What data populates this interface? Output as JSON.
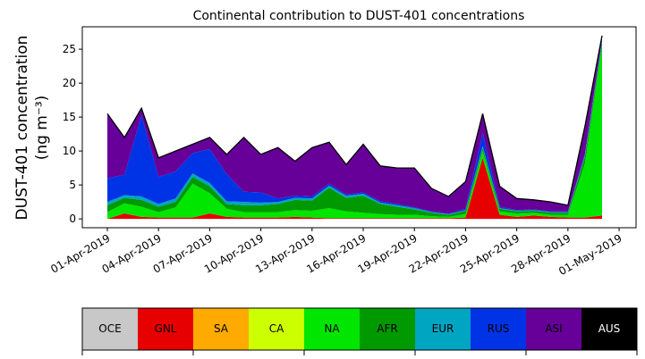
{
  "chart_data": {
    "type": "stacked_area",
    "title": "Continental contribution to DUST-401 concentrations",
    "y_label": [
      "DUST-401 concentration",
      "(ng m⁻³)"
    ],
    "x": [
      "2019-04-01",
      "2019-04-02",
      "2019-04-03",
      "2019-04-04",
      "2019-04-05",
      "2019-04-06",
      "2019-04-07",
      "2019-04-08",
      "2019-04-09",
      "2019-04-10",
      "2019-04-11",
      "2019-04-12",
      "2019-04-13",
      "2019-04-14",
      "2019-04-15",
      "2019-04-16",
      "2019-04-17",
      "2019-04-18",
      "2019-04-19",
      "2019-04-20",
      "2019-04-21",
      "2019-04-22",
      "2019-04-23",
      "2019-04-24",
      "2019-04-25",
      "2019-04-26",
      "2019-04-27",
      "2019-04-28",
      "2019-04-29",
      "2019-04-30"
    ],
    "xticks": [
      {
        "value": "2019-04-01",
        "label": "01-Apr-2019"
      },
      {
        "value": "2019-04-04",
        "label": "04-Apr-2019"
      },
      {
        "value": "2019-04-07",
        "label": "07-Apr-2019"
      },
      {
        "value": "2019-04-10",
        "label": "10-Apr-2019"
      },
      {
        "value": "2019-04-13",
        "label": "13-Apr-2019"
      },
      {
        "value": "2019-04-16",
        "label": "16-Apr-2019"
      },
      {
        "value": "2019-04-19",
        "label": "19-Apr-2019"
      },
      {
        "value": "2019-04-22",
        "label": "22-Apr-2019"
      },
      {
        "value": "2019-04-25",
        "label": "25-Apr-2019"
      },
      {
        "value": "2019-04-28",
        "label": "28-Apr-2019"
      },
      {
        "value": "2019-05-01",
        "label": "01-May-2019"
      }
    ],
    "ylim": [
      -1.3,
      28.3
    ],
    "yticks": [
      0,
      5,
      10,
      15,
      20,
      25
    ],
    "series": [
      {
        "name": "OCE",
        "color": "#c8c8c8",
        "values": [
          0,
          0,
          0,
          0,
          0,
          0,
          0,
          0,
          0,
          0,
          0,
          0,
          0,
          0,
          0,
          0,
          0,
          0,
          0,
          0,
          0,
          0,
          0,
          0,
          0,
          0,
          0,
          0,
          0,
          0
        ]
      },
      {
        "name": "GNL",
        "color": "#e60000",
        "values": [
          0,
          0.8,
          0.3,
          0.2,
          0.2,
          0.2,
          0.8,
          0.3,
          0.2,
          0.2,
          0.2,
          0.3,
          0.2,
          0.1,
          0.1,
          0.1,
          0.1,
          0.1,
          0.1,
          0.1,
          0.1,
          0.2,
          9,
          0.6,
          0.3,
          0.5,
          0.3,
          0.2,
          0.2,
          0.5
        ]
      },
      {
        "name": "SA",
        "color": "#ffaa00",
        "values": [
          0,
          0,
          0,
          0,
          0,
          0,
          0,
          0,
          0,
          0,
          0,
          0,
          0,
          0,
          0,
          0,
          0,
          0,
          0,
          0,
          0,
          0,
          0,
          0,
          0,
          0,
          0,
          0,
          0,
          0
        ]
      },
      {
        "name": "CA",
        "color": "#ccff00",
        "values": [
          0,
          0,
          0,
          0,
          0,
          0,
          0,
          0,
          0,
          0,
          0,
          0,
          0,
          0,
          0,
          0,
          0,
          0,
          0,
          0,
          0,
          0,
          0,
          0,
          0,
          0,
          0,
          0,
          0,
          0
        ]
      },
      {
        "name": "NA",
        "color": "#00e600",
        "values": [
          1,
          1.5,
          1.5,
          0.8,
          1.5,
          5,
          3,
          1.2,
          0.8,
          0.8,
          0.8,
          1,
          1,
          1.5,
          1,
          0.8,
          0.6,
          0.5,
          0.5,
          0.3,
          0.2,
          0.5,
          1,
          0.5,
          0.5,
          0.4,
          0.3,
          0.4,
          8,
          25
        ]
      },
      {
        "name": "AFR",
        "color": "#009900",
        "values": [
          1,
          0.8,
          1,
          0.8,
          0.8,
          1,
          1,
          0.7,
          1,
          1,
          1.2,
          1.5,
          1.5,
          3,
          2,
          2.5,
          1.5,
          1.2,
          0.8,
          0.5,
          0.3,
          0.5,
          0.5,
          0.4,
          0.3,
          0.3,
          0.3,
          0.3,
          1,
          0.5
        ]
      },
      {
        "name": "EUR",
        "color": "#00a5c2",
        "values": [
          0.5,
          0.4,
          0.5,
          0.4,
          0.5,
          0.5,
          0.5,
          0.4,
          0.5,
          0.4,
          0.3,
          0.3,
          0.3,
          0.3,
          0.3,
          0.3,
          0.2,
          0.2,
          0.2,
          0.1,
          0.1,
          0.1,
          0.2,
          0.1,
          0.1,
          0.1,
          0.1,
          0.1,
          0.2,
          0.2
        ]
      },
      {
        "name": "RUS",
        "color": "#0033e6",
        "values": [
          3.5,
          3,
          12,
          4,
          4,
          3,
          5,
          4,
          1.5,
          1.5,
          0.5,
          0.3,
          0.3,
          0.3,
          0.2,
          0.2,
          0.2,
          0.2,
          0.1,
          0.1,
          0.1,
          0.2,
          2,
          0.2,
          0.1,
          0.1,
          0.1,
          0.1,
          0.3,
          0.3
        ]
      },
      {
        "name": "ASI",
        "color": "#660099",
        "values": [
          9.5,
          5.5,
          1,
          2.8,
          3,
          1.3,
          1.7,
          2.9,
          8,
          5.6,
          7.5,
          5.1,
          7.2,
          6.1,
          4.4,
          7.1,
          5.2,
          5.3,
          5.8,
          3.4,
          2.5,
          4,
          2.8,
          3,
          1.7,
          1.4,
          1.4,
          0.9,
          4,
          0.5
        ]
      },
      {
        "name": "AUS",
        "color": "#000000",
        "values": [
          0,
          0,
          0,
          0,
          0,
          0,
          0,
          0,
          0,
          0,
          0,
          0,
          0,
          0,
          0,
          0,
          0,
          0,
          0,
          0,
          0,
          0,
          0,
          0,
          0,
          0,
          0,
          0,
          0,
          0
        ]
      }
    ]
  }
}
